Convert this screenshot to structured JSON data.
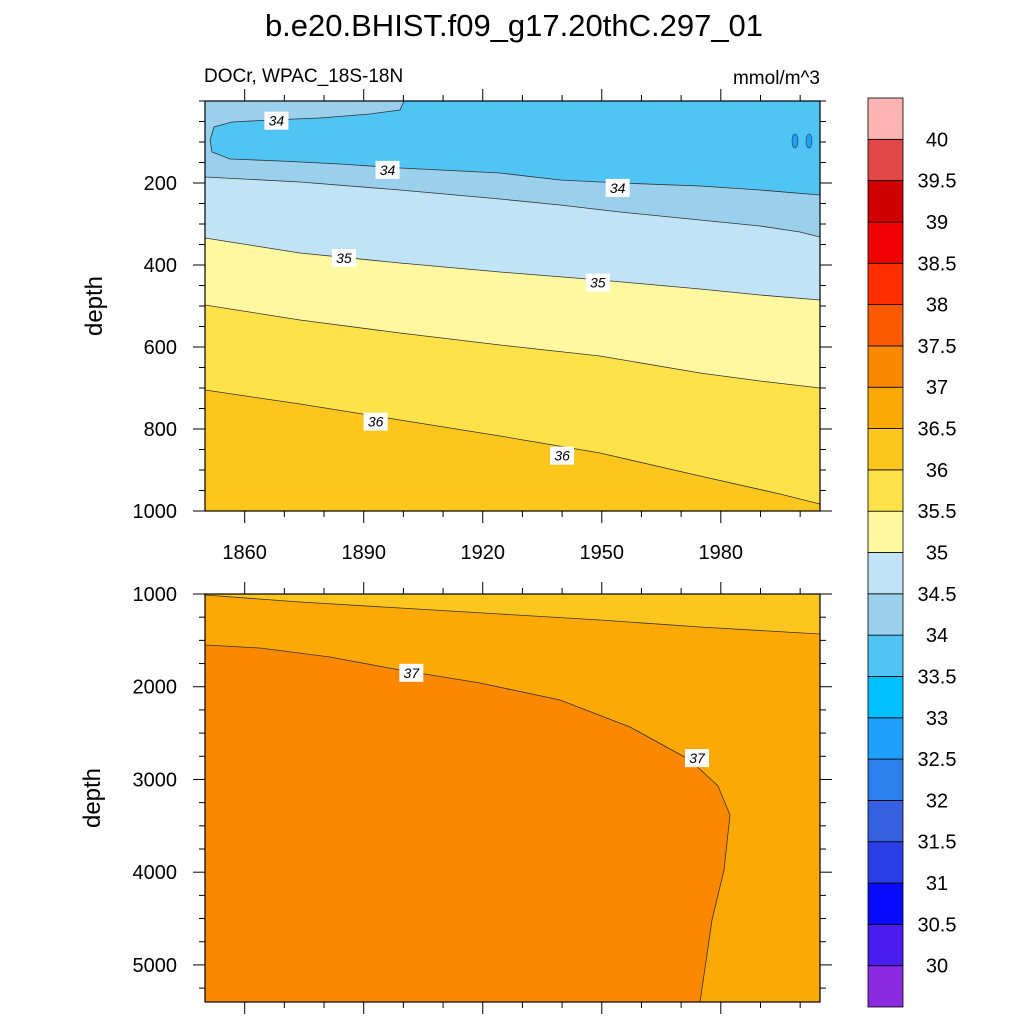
{
  "chart_data": {
    "type": "contour",
    "title": "b.e20.BHIST.f09_g17.20thC.297_01",
    "units": "mmol/m^3",
    "levels": [
      30,
      30.5,
      31,
      31.5,
      32,
      32.5,
      33,
      33.5,
      34,
      34.5,
      35,
      35.5,
      36,
      36.5,
      37,
      37.5,
      38,
      38.5,
      39,
      39.5,
      40
    ],
    "level_tick_labels": [
      "30",
      "30.5",
      "31",
      "31.5",
      "32",
      "32.5",
      "33",
      "33.5",
      "34",
      "34.5",
      "35",
      "35.5",
      "36",
      "36.5",
      "37",
      "37.5",
      "38",
      "38.5",
      "39",
      "39.5",
      "40"
    ],
    "level_colors": [
      "#8a2be2",
      "#4b1cf0",
      "#0a0aff",
      "#2a3ee8",
      "#3560e0",
      "#2e7fee",
      "#1fa0ff",
      "#00c0ff",
      "#50c4f4",
      "#9ad0ec",
      "#c0e4f6",
      "#fff8a0",
      "#ffe24a",
      "#fdc61e",
      "#fca806",
      "#fc8800",
      "#fc5a00",
      "#ff2e00",
      "#f00000",
      "#d00000",
      "#e04848",
      "#ffb4b4"
    ],
    "panels": [
      {
        "subtitle_left": "DOCr, WPAC_18S-18N",
        "subtitle_right": "mmol/m^3",
        "xlabel": "",
        "ylabel": "depth",
        "xlim": [
          1850,
          2005
        ],
        "ylim": [
          1000,
          0
        ],
        "x_ticks": [
          1860,
          1890,
          1920,
          1950,
          1980
        ],
        "y_ticks": [
          200,
          400,
          600,
          800,
          1000
        ],
        "contour_labels": [
          {
            "text": "34",
            "x": 1868,
            "y": 48
          },
          {
            "text": "34",
            "x": 1896,
            "y": 168
          },
          {
            "text": "34",
            "x": 1954,
            "y": 212
          },
          {
            "text": "35",
            "x": 1885,
            "y": 383
          },
          {
            "text": "35",
            "x": 1949,
            "y": 443
          },
          {
            "text": "36",
            "x": 1893,
            "y": 782
          },
          {
            "text": "36",
            "x": 1940,
            "y": 865
          }
        ]
      },
      {
        "subtitle_left": "",
        "subtitle_right": "",
        "xlabel": "",
        "ylabel": "depth",
        "xlim": [
          1850,
          2005
        ],
        "ylim": [
          5400,
          1000
        ],
        "x_ticks": [],
        "y_ticks": [
          1000,
          2000,
          3000,
          4000,
          5000
        ],
        "contour_labels": [
          {
            "text": "37",
            "x": 1902,
            "y": 1850
          },
          {
            "text": "37",
            "x": 1974,
            "y": 2770
          }
        ]
      }
    ]
  }
}
